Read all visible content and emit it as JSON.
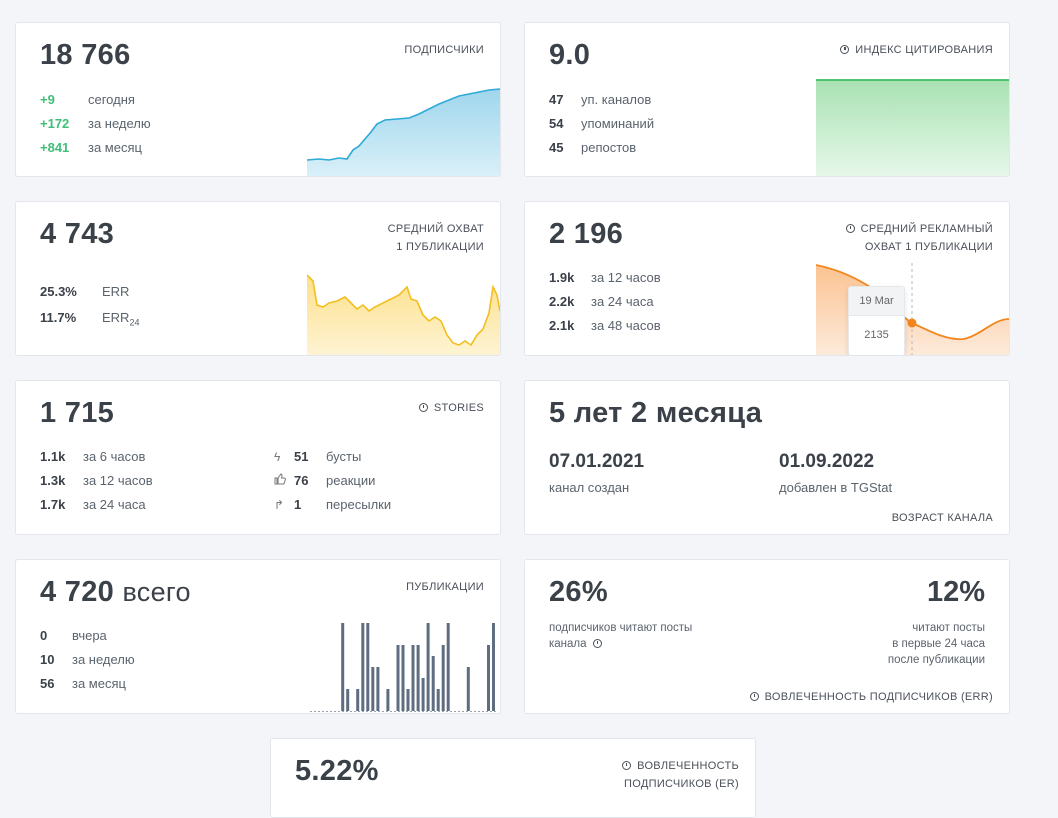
{
  "subscribers": {
    "value": "18 766",
    "title": "ПОДПИСЧИКИ",
    "rows": [
      {
        "value": "+9",
        "label": "сегодня"
      },
      {
        "value": "+172",
        "label": "за неделю"
      },
      {
        "value": "+841",
        "label": "за месяц"
      }
    ],
    "color": "#2fa9d6"
  },
  "citation": {
    "value": "9.0",
    "title": "ИНДЕКС ЦИТИРОВАНИЯ",
    "rows": [
      {
        "value": "47",
        "label": "уп. каналов"
      },
      {
        "value": "54",
        "label": "упоминаний"
      },
      {
        "value": "45",
        "label": "репостов"
      }
    ],
    "color": "#3dbb62"
  },
  "reach": {
    "value": "4 743",
    "title_line1": "СРЕДНИЙ ОХВАТ",
    "title_line2": "1 ПУБЛИКАЦИИ",
    "err": {
      "value": "25.3%",
      "label": "ERR"
    },
    "err24": {
      "value": "11.7%",
      "label": "ERR",
      "sub": "24"
    },
    "color": "#f3be1f"
  },
  "ad_reach": {
    "value": "2 196",
    "title_line1": "СРЕДНИЙ РЕКЛАМНЫЙ",
    "title_line2": "ОХВАТ 1 ПУБЛИКАЦИИ",
    "rows": [
      {
        "value": "1.9k",
        "label": "за 12 часов"
      },
      {
        "value": "2.2k",
        "label": "за 24 часа"
      },
      {
        "value": "2.1k",
        "label": "за 48 часов"
      }
    ],
    "tooltip": {
      "date": "19 Mar",
      "value": "2135"
    },
    "color": "#f2861e"
  },
  "stories": {
    "value": "1 715",
    "title": "STORIES",
    "left_rows": [
      {
        "value": "1.1k",
        "label": "за 6 часов"
      },
      {
        "value": "1.3k",
        "label": "за 12 часов"
      },
      {
        "value": "1.7k",
        "label": "за 24 часа"
      }
    ],
    "right_rows": [
      {
        "icon": "lightning-icon",
        "value": "51",
        "label": "бусты"
      },
      {
        "icon": "thumbs-up-icon",
        "value": "76",
        "label": "реакции"
      },
      {
        "icon": "share-arrow-icon",
        "value": "1",
        "label": "пересылки"
      }
    ]
  },
  "age": {
    "value": "5 лет 2 месяца",
    "created": {
      "date": "07.01.2021",
      "label": "канал создан"
    },
    "added": {
      "date": "01.09.2022",
      "label": "добавлен в TGStat"
    },
    "title": "ВОЗРАСТ КАНАЛА"
  },
  "publications": {
    "value": "4 720",
    "value_suffix": "всего",
    "title": "ПУБЛИКАЦИИ",
    "rows": [
      {
        "value": "0",
        "label": "вчера"
      },
      {
        "value": "10",
        "label": "за неделю"
      },
      {
        "value": "56",
        "label": "за месяц"
      }
    ],
    "bars": [
      0,
      0,
      0,
      0,
      0,
      0,
      8,
      2,
      0,
      2,
      8,
      8,
      4,
      4,
      0,
      2,
      0,
      6,
      6,
      2,
      6,
      6,
      3,
      8,
      5,
      2,
      6,
      8,
      0,
      0,
      0,
      4,
      0,
      0,
      0,
      6,
      8
    ],
    "bar_max": 8,
    "color": "#5e6d80"
  },
  "engagement": {
    "left_value": "26%",
    "left_label_1": "подписчиков читают посты",
    "left_label_2": "канала",
    "right_value": "12%",
    "right_label_1": "читают посты",
    "right_label_2": "в первые 24 часа",
    "right_label_3": "после публикации",
    "title": "ВОВЛЕЧЕННОСТЬ ПОДПИСЧИКОВ (ERR)"
  },
  "er": {
    "value": "5.22%",
    "title_line1": "ВОВЛЕЧЕННОСТЬ",
    "title_line2": "ПОДПИСЧИКОВ (ER)"
  }
}
